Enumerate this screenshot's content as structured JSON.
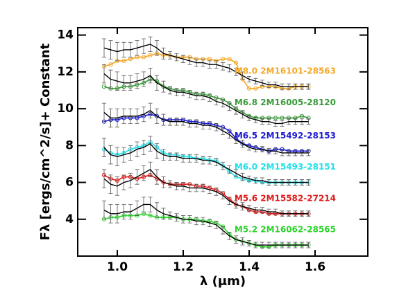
{
  "chart_data": {
    "type": "line",
    "xlabel": "λ (μm)",
    "ylabel": "Fλ [ergs/cm^2/s]+ Constant",
    "xlim": [
      0.88,
      1.76
    ],
    "ylim": [
      2,
      14.4
    ],
    "xticks": [
      {
        "value": 1,
        "label": "1.0"
      },
      1.2,
      1.4,
      1.6
    ],
    "yticks": [
      4,
      6,
      8,
      10,
      12,
      14
    ],
    "x": [
      0.96,
      0.98,
      1.0,
      1.02,
      1.04,
      1.06,
      1.08,
      1.1,
      1.12,
      1.14,
      1.16,
      1.18,
      1.2,
      1.22,
      1.24,
      1.26,
      1.28,
      1.3,
      1.32,
      1.34,
      1.36,
      1.38,
      1.4,
      1.42,
      1.44,
      1.46,
      1.48,
      1.5,
      1.52,
      1.54,
      1.56,
      1.58
    ],
    "series": [
      {
        "name": "M8.0 2M16101-28563",
        "color": "#f5a623",
        "values": [
          12.3,
          12.4,
          12.6,
          12.6,
          12.7,
          12.8,
          12.8,
          12.9,
          13.0,
          12.9,
          12.9,
          12.8,
          12.8,
          12.8,
          12.7,
          12.7,
          12.7,
          12.6,
          12.7,
          12.7,
          12.5,
          11.6,
          11.1,
          11.1,
          11.2,
          11.2,
          11.2,
          11.1,
          11.1,
          11.2,
          11.2,
          11.2
        ]
      },
      {
        "color": "#000000",
        "values": [
          13.3,
          13.2,
          13.1,
          13.2,
          13.2,
          13.3,
          13.4,
          13.5,
          13.3,
          13.0,
          12.9,
          12.8,
          12.7,
          12.6,
          12.5,
          12.5,
          12.4,
          12.4,
          12.3,
          12.2,
          12.0,
          11.8,
          11.6,
          11.5,
          11.4,
          11.3,
          11.3,
          11.2,
          11.2,
          11.2,
          11.2,
          11.2
        ],
        "errors": [
          0.5,
          0.5,
          0.5,
          0.4,
          0.4,
          0.4,
          0.4,
          0.4,
          0.4,
          0.3,
          0.2,
          0.2,
          0.2,
          0.2,
          0.2,
          0.2,
          0.2,
          0.2,
          0.2,
          0.2,
          0.2,
          0.2,
          0.15,
          0.15,
          0.15,
          0.15,
          0.15,
          0.15,
          0.15,
          0.15,
          0.15,
          0.15
        ]
      },
      {
        "name": "M6.8 2M16005-28120",
        "color": "#3a9a3a",
        "values": [
          11.2,
          11.1,
          11.1,
          11.2,
          11.2,
          11.3,
          11.4,
          11.6,
          11.5,
          11.2,
          11.1,
          11.0,
          11.0,
          10.9,
          10.8,
          10.8,
          10.7,
          10.6,
          10.5,
          10.3,
          10.0,
          9.8,
          9.6,
          9.5,
          9.5,
          9.5,
          9.5,
          9.5,
          9.5,
          9.5,
          9.6,
          9.5
        ]
      },
      {
        "color": "#000000",
        "values": [
          11.9,
          11.6,
          11.5,
          11.4,
          11.4,
          11.5,
          11.6,
          11.8,
          11.4,
          11.2,
          11.0,
          10.9,
          10.9,
          10.8,
          10.7,
          10.7,
          10.6,
          10.4,
          10.3,
          10.1,
          9.9,
          9.7,
          9.5,
          9.4,
          9.3,
          9.3,
          9.2,
          9.2,
          9.3,
          9.3,
          9.3,
          9.3
        ],
        "errors": [
          0.5,
          0.5,
          0.5,
          0.4,
          0.4,
          0.4,
          0.4,
          0.4,
          0.4,
          0.3,
          0.2,
          0.2,
          0.2,
          0.2,
          0.2,
          0.2,
          0.2,
          0.2,
          0.2,
          0.2,
          0.2,
          0.2,
          0.15,
          0.15,
          0.15,
          0.15,
          0.15,
          0.15,
          0.15,
          0.15,
          0.15,
          0.15
        ]
      },
      {
        "name": "M6.5 2M15492-28153",
        "color": "#1a1ad0",
        "values": [
          9.3,
          9.4,
          9.4,
          9.5,
          9.5,
          9.5,
          9.6,
          9.7,
          9.6,
          9.4,
          9.4,
          9.4,
          9.4,
          9.3,
          9.3,
          9.2,
          9.2,
          9.1,
          9.0,
          8.8,
          8.4,
          8.1,
          8.0,
          7.9,
          7.8,
          7.7,
          7.8,
          7.8,
          7.7,
          7.7,
          7.7,
          7.7
        ]
      },
      {
        "color": "#000000",
        "values": [
          9.8,
          9.5,
          9.5,
          9.6,
          9.6,
          9.6,
          9.7,
          9.9,
          9.6,
          9.4,
          9.3,
          9.3,
          9.3,
          9.2,
          9.2,
          9.1,
          9.1,
          9.0,
          8.8,
          8.6,
          8.3,
          8.1,
          7.9,
          7.8,
          7.8,
          7.7,
          7.7,
          7.6,
          7.6,
          7.6,
          7.6,
          7.6
        ],
        "errors": [
          0.5,
          0.5,
          0.5,
          0.4,
          0.4,
          0.4,
          0.4,
          0.4,
          0.4,
          0.3,
          0.2,
          0.2,
          0.2,
          0.2,
          0.2,
          0.2,
          0.2,
          0.2,
          0.2,
          0.2,
          0.2,
          0.2,
          0.15,
          0.15,
          0.15,
          0.15,
          0.15,
          0.15,
          0.15,
          0.15,
          0.15,
          0.15
        ]
      },
      {
        "name": "M6.0 2M15493-28151",
        "color": "#22e0e8",
        "values": [
          7.8,
          7.6,
          7.5,
          7.6,
          7.8,
          7.9,
          8.0,
          8.2,
          7.9,
          7.6,
          7.5,
          7.5,
          7.4,
          7.4,
          7.3,
          7.3,
          7.2,
          7.2,
          6.9,
          6.6,
          6.3,
          6.2,
          6.1,
          6.1,
          6.0,
          6.0,
          6.0,
          6.0,
          6.0,
          6.0,
          6.0,
          6.0
        ]
      },
      {
        "color": "#000000",
        "values": [
          7.9,
          7.5,
          7.4,
          7.5,
          7.6,
          7.8,
          7.9,
          8.1,
          7.7,
          7.5,
          7.4,
          7.4,
          7.3,
          7.3,
          7.3,
          7.2,
          7.2,
          7.1,
          6.9,
          6.7,
          6.5,
          6.3,
          6.2,
          6.1,
          6.1,
          6.0,
          6.0,
          6.0,
          6.0,
          6.0,
          6.0,
          6.0
        ],
        "errors": [
          0.5,
          0.5,
          0.5,
          0.4,
          0.4,
          0.4,
          0.4,
          0.4,
          0.4,
          0.3,
          0.2,
          0.2,
          0.2,
          0.2,
          0.2,
          0.2,
          0.2,
          0.2,
          0.2,
          0.2,
          0.2,
          0.2,
          0.15,
          0.15,
          0.15,
          0.15,
          0.15,
          0.15,
          0.15,
          0.15,
          0.15,
          0.15
        ]
      },
      {
        "name": "M5.6 2M15582-27214",
        "color": "#e01a1a",
        "values": [
          6.4,
          6.2,
          6.1,
          6.3,
          6.3,
          6.2,
          6.3,
          6.4,
          6.2,
          6.0,
          5.9,
          5.9,
          5.9,
          5.9,
          5.8,
          5.8,
          5.7,
          5.6,
          5.4,
          5.1,
          4.8,
          4.7,
          4.5,
          4.4,
          4.4,
          4.3,
          4.3,
          4.3,
          4.3,
          4.3,
          4.3,
          4.3
        ]
      },
      {
        "color": "#000000",
        "values": [
          6.2,
          5.9,
          5.8,
          6.0,
          6.1,
          6.3,
          6.5,
          6.7,
          6.3,
          6.0,
          5.9,
          5.8,
          5.8,
          5.7,
          5.7,
          5.7,
          5.6,
          5.5,
          5.3,
          5.0,
          4.8,
          4.7,
          4.6,
          4.5,
          4.5,
          4.4,
          4.4,
          4.3,
          4.3,
          4.3,
          4.3,
          4.3
        ],
        "errors": [
          0.5,
          0.5,
          0.5,
          0.4,
          0.4,
          0.4,
          0.4,
          0.4,
          0.4,
          0.3,
          0.2,
          0.2,
          0.2,
          0.2,
          0.2,
          0.2,
          0.2,
          0.2,
          0.2,
          0.2,
          0.2,
          0.2,
          0.15,
          0.15,
          0.15,
          0.15,
          0.15,
          0.15,
          0.15,
          0.15,
          0.15,
          0.15
        ]
      },
      {
        "name": "M5.2 2M16062-28565",
        "color": "#2ad42a",
        "values": [
          4.0,
          4.1,
          4.1,
          4.2,
          4.2,
          4.2,
          4.3,
          4.2,
          4.1,
          4.1,
          4.1,
          4.1,
          4.0,
          4.0,
          4.0,
          3.9,
          3.9,
          3.8,
          3.6,
          3.2,
          2.9,
          2.8,
          2.7,
          2.6,
          2.5,
          2.5,
          2.6,
          2.6,
          2.6,
          2.6,
          2.6,
          2.6
        ]
      },
      {
        "color": "#000000",
        "values": [
          4.5,
          4.3,
          4.3,
          4.4,
          4.4,
          4.6,
          4.8,
          4.8,
          4.5,
          4.3,
          4.2,
          4.1,
          4.0,
          4.0,
          3.9,
          3.9,
          3.8,
          3.7,
          3.4,
          3.1,
          2.9,
          2.8,
          2.7,
          2.6,
          2.6,
          2.6,
          2.6,
          2.6,
          2.6,
          2.6,
          2.6,
          2.6
        ],
        "errors": [
          0.5,
          0.5,
          0.5,
          0.4,
          0.4,
          0.4,
          0.4,
          0.4,
          0.4,
          0.3,
          0.2,
          0.2,
          0.2,
          0.2,
          0.2,
          0.2,
          0.2,
          0.2,
          0.2,
          0.2,
          0.2,
          0.2,
          0.15,
          0.15,
          0.15,
          0.15,
          0.15,
          0.15,
          0.15,
          0.15,
          0.15,
          0.15
        ]
      }
    ]
  }
}
